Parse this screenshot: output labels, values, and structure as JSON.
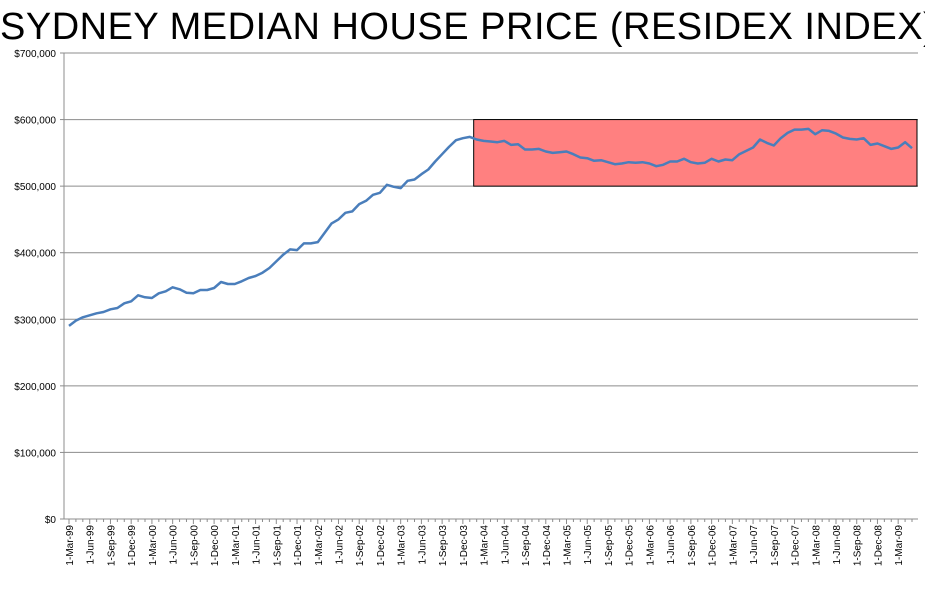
{
  "chart_data": {
    "type": "line",
    "title": "SYDNEY MEDIAN HOUSE PRICE (RESIDEX INDEX)",
    "xlabel": "",
    "ylabel": "",
    "ylim": [
      0,
      700000
    ],
    "yticks": [
      0,
      100000,
      200000,
      300000,
      400000,
      500000,
      600000,
      700000
    ],
    "ytick_labels": [
      "$0",
      "$100,000",
      "$200,000",
      "$300,000",
      "$400,000",
      "$500,000",
      "$600,000",
      "$700,000"
    ],
    "xtick_labels": [
      "1-Mar-99",
      "1-Jun-99",
      "1-Sep-99",
      "1-Dec-99",
      "1-Mar-00",
      "1-Jun-00",
      "1-Sep-00",
      "1-Dec-00",
      "1-Mar-01",
      "1-Jun-01",
      "1-Sep-01",
      "1-Dec-01",
      "1-Mar-02",
      "1-Jun-02",
      "1-Sep-02",
      "1-Dec-02",
      "1-Mar-03",
      "1-Jun-03",
      "1-Sep-03",
      "1-Dec-03",
      "1-Mar-04",
      "1-Jun-04",
      "1-Sep-04",
      "1-Dec-04",
      "1-Mar-05",
      "1-Jun-05",
      "1-Sep-05",
      "1-Dec-05",
      "1-Mar-06",
      "1-Jun-06",
      "1-Sep-06",
      "1-Dec-06",
      "1-Mar-07",
      "1-Jun-07",
      "1-Sep-07",
      "1-Dec-07",
      "1-Mar-08",
      "1-Jun-08",
      "1-Sep-08",
      "1-Dec-08",
      "1-Mar-09"
    ],
    "grid": true,
    "series": [
      {
        "name": "Sydney median house price",
        "color": "#4a7ebb",
        "values": [
          290000,
          298000,
          303000,
          306000,
          309000,
          311000,
          315000,
          317000,
          324000,
          327000,
          336000,
          333000,
          332000,
          339000,
          342000,
          348000,
          345000,
          340000,
          339000,
          344000,
          344000,
          347000,
          356000,
          353000,
          353000,
          357000,
          362000,
          365000,
          370000,
          377000,
          387000,
          397000,
          405000,
          404000,
          414000,
          414000,
          416000,
          430000,
          444000,
          450000,
          460000,
          462000,
          473000,
          478000,
          487000,
          490000,
          502000,
          499000,
          497000,
          508000,
          510000,
          518000,
          525000,
          537000,
          548000,
          559000,
          569000,
          572000,
          574000,
          570000,
          568000,
          567000,
          566000,
          568000,
          562000,
          563000,
          555000,
          555000,
          556000,
          552000,
          550000,
          551000,
          552000,
          548000,
          543000,
          542000,
          538000,
          539000,
          536000,
          533000,
          534000,
          536000,
          535000,
          536000,
          534000,
          530000,
          532000,
          537000,
          537000,
          541000,
          536000,
          534000,
          535000,
          541000,
          537000,
          540000,
          539000,
          548000,
          553000,
          558000,
          570000,
          565000,
          561000,
          572000,
          580000,
          585000,
          585000,
          586000,
          578000,
          584000,
          583000,
          579000,
          573000,
          571000,
          570000,
          572000,
          562000,
          564000,
          560000,
          556000,
          558000,
          566000,
          557000
        ]
      }
    ],
    "highlight": {
      "x_start_index": 59,
      "x_end_index": 122,
      "y_range": [
        500000,
        600000
      ],
      "color": "#ff8080"
    }
  }
}
